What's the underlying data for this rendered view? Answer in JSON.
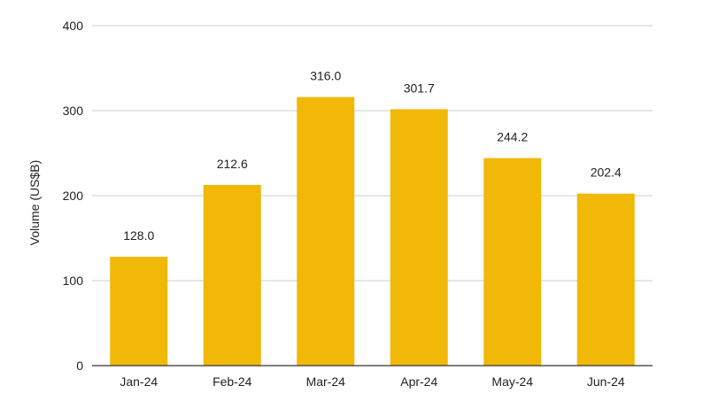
{
  "chart_data": {
    "type": "bar",
    "title": "",
    "xlabel": "",
    "ylabel": "Volume (US$B)",
    "categories": [
      "Jan-24",
      "Feb-24",
      "Mar-24",
      "Apr-24",
      "May-24",
      "Jun-24"
    ],
    "values": [
      128.0,
      212.6,
      316.0,
      301.7,
      244.2,
      202.4
    ],
    "data_labels": [
      "128.0",
      "212.6",
      "316.0",
      "301.7",
      "244.2",
      "202.4"
    ],
    "ylim": [
      0,
      400
    ],
    "y_ticks": [
      0,
      100,
      200,
      300,
      400
    ],
    "grid": true,
    "legend": "none",
    "colors": {
      "bar": "#F1B807",
      "grid": "#CCCCCC",
      "axis": "#333333",
      "text": "#222222"
    }
  }
}
